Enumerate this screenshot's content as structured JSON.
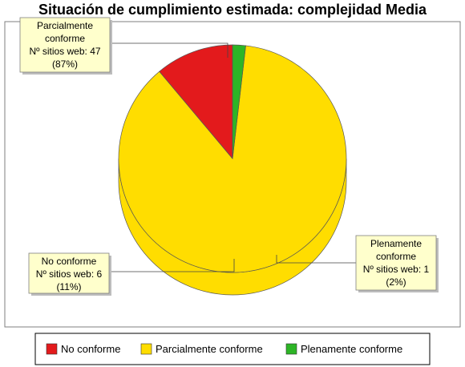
{
  "chart_data": {
    "type": "pie",
    "title": "Situación de cumplimiento estimada: complejidad Media",
    "slices": [
      {
        "name": "No conforme",
        "value": 6,
        "percent": "(11%)",
        "color": "#e31a1c"
      },
      {
        "name": "Parcialmente conforme",
        "value": 47,
        "percent": "(87%)",
        "color": "#ffdd00"
      },
      {
        "name": "Plenamente conforme",
        "value": 1,
        "percent": "(2%)",
        "color": "#2db526"
      }
    ],
    "value_prefix": "Nº sitios web: ",
    "labels": {
      "parcial": [
        "Parcialmente",
        "conforme",
        "Nº sitios web: 47",
        "(87%)"
      ],
      "no": [
        "No conforme",
        "Nº sitios web: 6",
        "(11%)"
      ],
      "plena": [
        "Plenamente",
        "conforme",
        "Nº sitios web: 1",
        "(2%)"
      ]
    },
    "legend": [
      "No conforme",
      "Parcialmente conforme",
      "Plenamente conforme"
    ],
    "legend_position": "bottom"
  }
}
